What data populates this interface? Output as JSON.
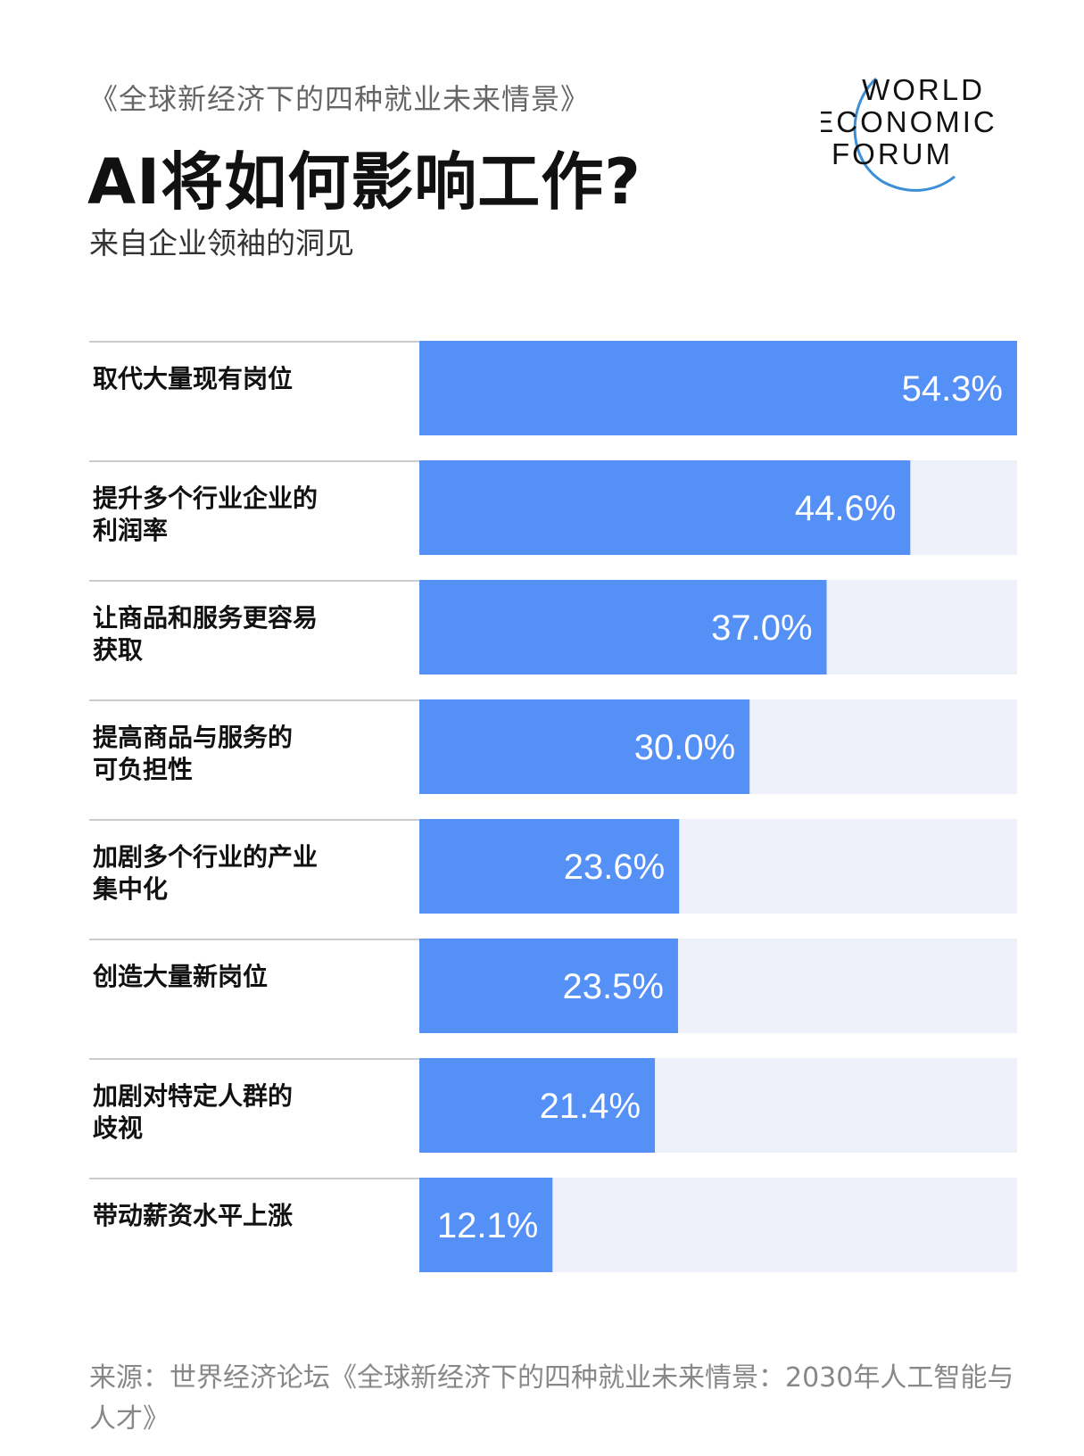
{
  "header": {
    "report_title": "《全球新经济下的四种就业未来情景》",
    "title": "AI将如何影响工作?",
    "subtitle": "来自企业领袖的洞见"
  },
  "logo": {
    "lines": [
      "WORLD",
      "ECONOMIC",
      "FORUM"
    ]
  },
  "colors": {
    "bar": "#5590F7",
    "track": "#EEF1FA",
    "divider": "#CCCCCC",
    "value_text": "#FFFFFF",
    "logo_arc": "#3A8FD6"
  },
  "chart_data": {
    "type": "bar",
    "orientation": "horizontal",
    "categories": [
      [
        "取代大量现有岗位"
      ],
      [
        "提升多个行业企业的",
        "利润率"
      ],
      [
        "让商品和服务更容易",
        "获取"
      ],
      [
        "提高商品与服务的",
        "可负担性"
      ],
      [
        "加剧多个行业的产业",
        "集中化"
      ],
      [
        "创造大量新岗位"
      ],
      [
        "加剧对特定人群的",
        "歧视"
      ],
      [
        "带动薪资水平上涨"
      ]
    ],
    "values": [
      54.3,
      44.6,
      37.0,
      30.0,
      23.6,
      23.5,
      21.4,
      12.1
    ],
    "value_labels": [
      "54.3%",
      "44.6%",
      "37.0%",
      "30.0%",
      "23.6%",
      "23.5%",
      "21.4%",
      "12.1%"
    ],
    "xlim": [
      0,
      54.3
    ]
  },
  "footer": {
    "source": "来源：世界经济论坛《全球新经济下的四种就业未来情景：2030年人工智能与人才》"
  }
}
